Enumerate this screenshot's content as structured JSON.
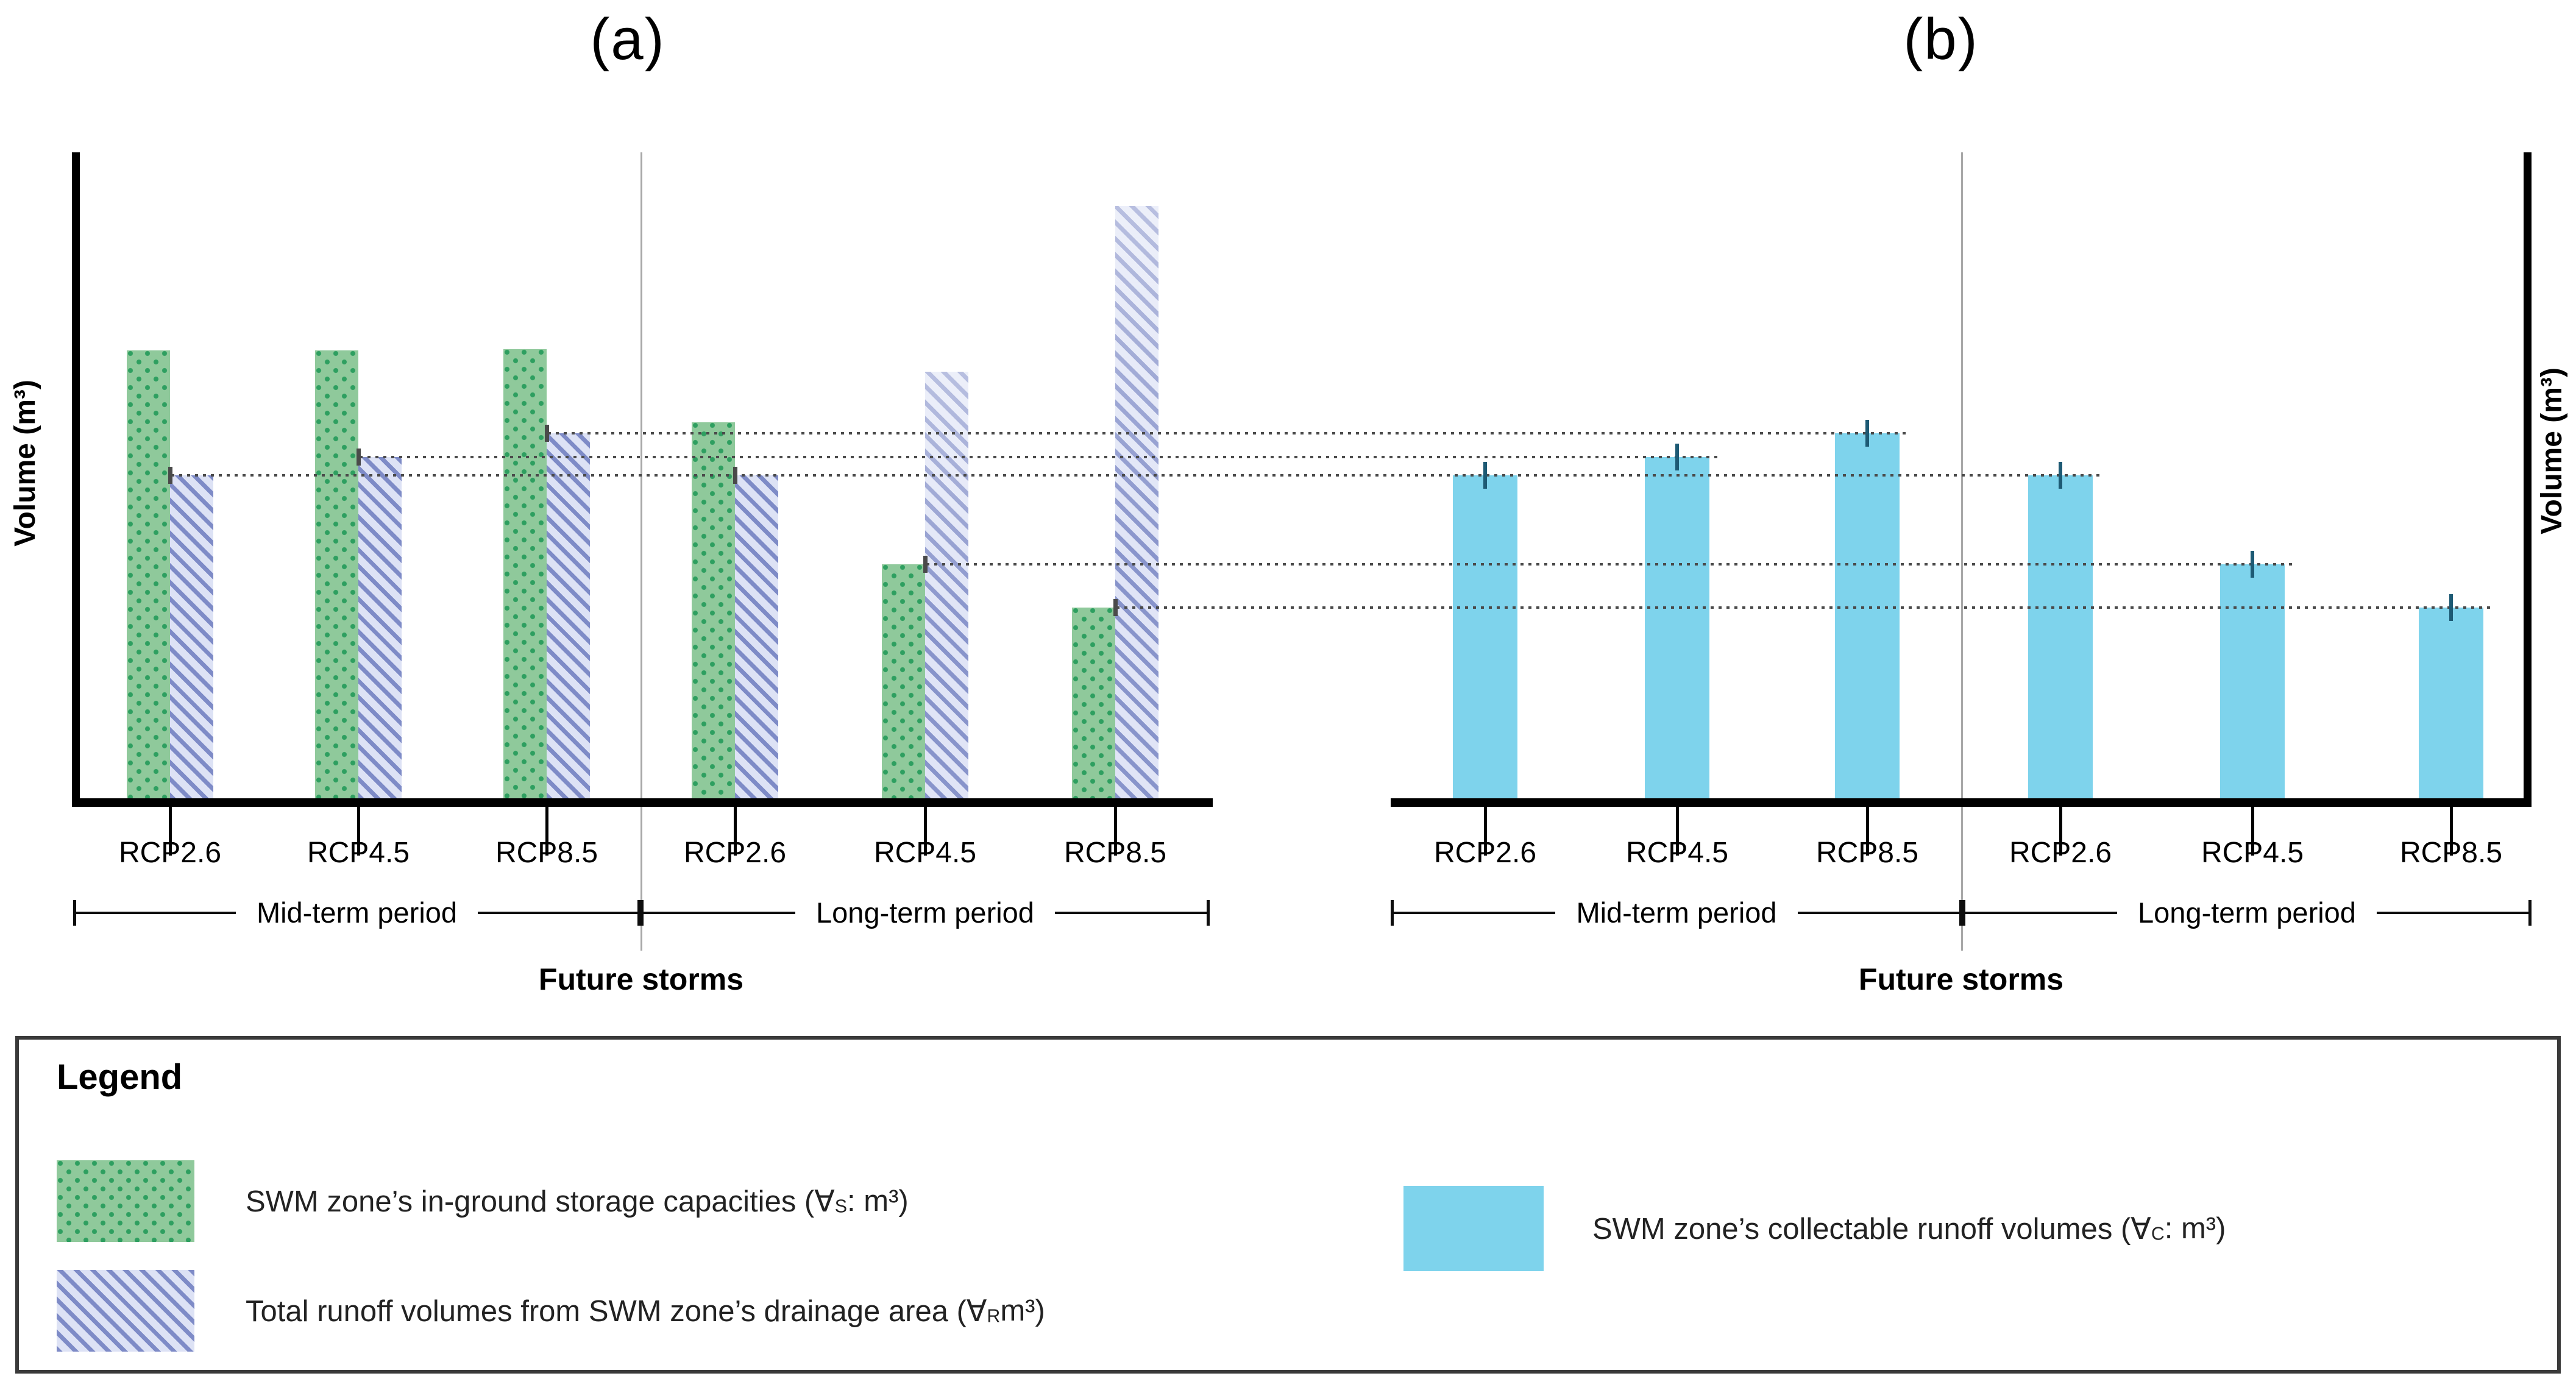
{
  "titles": {
    "a": "(a)",
    "b": "(b)"
  },
  "axes": {
    "y_label": "Volume (m³)",
    "x_label": "Future storms"
  },
  "periods": {
    "mid": "Mid-term period",
    "long": "Long-term period"
  },
  "categories": [
    "RCP2.6",
    "RCP4.5",
    "RCP8.5"
  ],
  "chart_data": [
    {
      "type": "bar",
      "panel": "a",
      "title": "(a)",
      "xlabel": "Future storms",
      "ylabel": "Volume (m³)",
      "categories": [
        "RCP2.6",
        "RCP4.5",
        "RCP8.5",
        "RCP2.6",
        "RCP4.5",
        "RCP8.5"
      ],
      "group_spans": [
        {
          "label": "Mid-term period",
          "category_indexes": [
            0,
            1,
            2
          ]
        },
        {
          "label": "Long-term period",
          "category_indexes": [
            3,
            4,
            5
          ]
        }
      ],
      "units": "relative height, % of drawn y-axis (figure shows no numeric ticks)",
      "ylim": [
        0,
        100
      ],
      "grid": false,
      "series": [
        {
          "name": "SWM zone's in-ground storage capacities (∀S : m³)",
          "pattern": "green dotted",
          "values": [
            69.3,
            69.3,
            69.5,
            58.2,
            36.2,
            29.5
          ]
        },
        {
          "name": "Total runoff volumes from SWM zone's drainage area (∀R m³)",
          "pattern": "blue-violet diagonal hatch",
          "values": [
            50.0,
            52.8,
            56.5,
            50.0,
            66.0,
            91.7
          ]
        }
      ],
      "error_bars": "small dark ticks drawn at the lower of the two bar tops in each pair"
    },
    {
      "type": "bar",
      "panel": "b",
      "title": "(b)",
      "xlabel": "Future storms",
      "ylabel": "Volume (m³)",
      "categories": [
        "RCP2.6",
        "RCP4.5",
        "RCP8.5",
        "RCP2.6",
        "RCP4.5",
        "RCP8.5"
      ],
      "group_spans": [
        {
          "label": "Mid-term period",
          "category_indexes": [
            0,
            1,
            2
          ]
        },
        {
          "label": "Long-term period",
          "category_indexes": [
            3,
            4,
            5
          ]
        }
      ],
      "units": "relative height, % of drawn y-axis (figure shows no numeric ticks)",
      "ylim": [
        0,
        100
      ],
      "grid": false,
      "series": [
        {
          "name": "SWM zone's collectable runoff volumes (∀C : m³)",
          "pattern": "solid cyan",
          "values": [
            50.0,
            52.8,
            56.5,
            50.0,
            36.2,
            29.5
          ]
        }
      ],
      "error_bars": "small dark vertical ticks centered on every bar top",
      "leader_lines": "dotted horizontal lines connect each panel (a) controlling bar top (min of storage vs runoff) to the equal-height collectable-volume bar top in panel (b)"
    }
  ],
  "leader_pairs": [
    {
      "a_index": 2,
      "b_index": 2
    },
    {
      "a_index": 1,
      "b_index": 1
    },
    {
      "a_index": 0,
      "b_index": 3
    },
    {
      "a_index": 4,
      "b_index": 4
    },
    {
      "a_index": 5,
      "b_index": 5
    }
  ],
  "legend": {
    "title": "Legend",
    "items": [
      {
        "swatch": "green-dotted",
        "before": "SWM zone’s in-ground storage capacities (∀",
        "sub": "S",
        "after": " : m³)"
      },
      {
        "swatch": "blue-hatched",
        "before": "Total runoff volumes from SWM zone’s drainage area (∀",
        "sub": "R",
        "after": " m³)"
      },
      {
        "swatch": "cyan-solid",
        "before": "SWM zone’s collectable runoff volumes (∀",
        "sub": "C",
        "after": " : m³)"
      }
    ]
  },
  "colors": {
    "green_fill": "#8fc99b",
    "green_dot": "#2e9f60",
    "blue_fill": "#dde2f5",
    "blue_stripe": "#7e8bc7",
    "cyan_fill": "#7ed3ec",
    "error_tick_a": "#4a4a4a",
    "error_tick_b": "#1d5a74",
    "leader_dots": "#4a4a4a",
    "axis": "#000000",
    "separator": "#a8a8a8"
  }
}
